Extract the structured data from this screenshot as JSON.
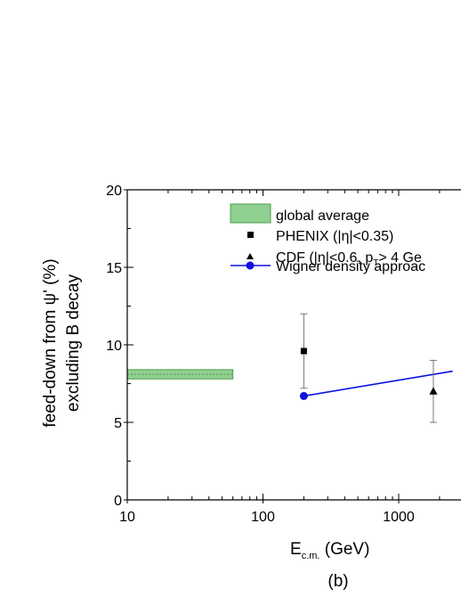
{
  "chart_data": {
    "type": "scatter",
    "panel_label": "(b)",
    "xlabel_main": "E",
    "xlabel_sub": "c.m.",
    "xlabel_unit": " (GeV)",
    "ylabel_line1": "feed-down from ψ' (%)",
    "ylabel_line2": "excluding B decay",
    "x_scale": "log",
    "xlim": [
      10,
      2500
    ],
    "ylim": [
      0,
      20
    ],
    "x_ticks": [
      {
        "value": 10,
        "label": "10"
      },
      {
        "value": 100,
        "label": "100"
      },
      {
        "value": 1000,
        "label": "1000"
      }
    ],
    "y_ticks": [
      {
        "value": 0,
        "label": "0"
      },
      {
        "value": 5,
        "label": "5"
      },
      {
        "value": 10,
        "label": "10"
      },
      {
        "value": 15,
        "label": "15"
      },
      {
        "value": 20,
        "label": "20"
      }
    ],
    "legend": [
      {
        "key": "band",
        "label": "global average"
      },
      {
        "key": "square",
        "label": "PHENIX (|η|<0.35)"
      },
      {
        "key": "triangle",
        "label_pre": "CDF (|η|<0.6, p",
        "label_sub": "T",
        "label_post": "> 4 Ge"
      },
      {
        "key": "line",
        "label": "Wigner density approac"
      }
    ],
    "series": {
      "global_average": {
        "x_range": [
          10,
          60
        ],
        "value": 8.1,
        "band": [
          7.8,
          8.4
        ],
        "color": "#8fcf8f"
      },
      "phenix": {
        "x": 200,
        "y": 9.6,
        "err_low": 7.2,
        "err_high": 12.0
      },
      "cdf": {
        "x": 1800,
        "y": 7.0,
        "err_low": 5.0,
        "err_high": 9.0
      },
      "wigner": {
        "x": [
          200,
          2500
        ],
        "y": [
          6.7,
          8.3
        ],
        "color": "#1010e0"
      }
    }
  }
}
